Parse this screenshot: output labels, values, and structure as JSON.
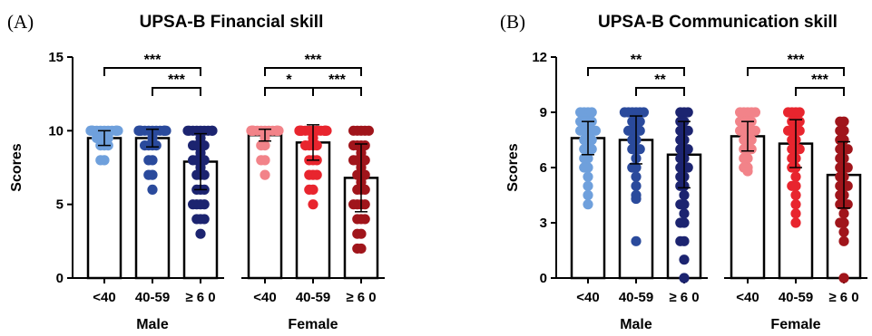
{
  "chart_data": [
    {
      "type": "bar",
      "panel_label": "(A)",
      "title": "UPSA-B Financial skill",
      "ylabel": "Scores",
      "ylim": [
        0,
        15
      ],
      "yticks": [
        "0",
        "5",
        "10",
        "15"
      ],
      "ytick_values": [
        0,
        5,
        10,
        15
      ],
      "categories": [
        "<40",
        "40-59",
        "≥ 6 0",
        "<40",
        "40-59",
        "≥ 6 0"
      ],
      "groups": [
        {
          "name": "Male",
          "categories": [
            0,
            1,
            2
          ]
        },
        {
          "name": "Female",
          "categories": [
            3,
            4,
            5
          ]
        }
      ],
      "values": [
        9.5,
        9.5,
        7.9,
        9.7,
        9.2,
        6.8
      ],
      "error": [
        0.5,
        0.6,
        1.9,
        0.4,
        1.2,
        2.3
      ],
      "colors": [
        "#6fa0dc",
        "#2a4a9c",
        "#1c2470",
        "#f28389",
        "#e8252e",
        "#a0151b"
      ],
      "points": [
        [
          10,
          10,
          10,
          10,
          10,
          10,
          10,
          10,
          10,
          10,
          10,
          10,
          10,
          10,
          10,
          10,
          10,
          10,
          9.5,
          9.5,
          9.5,
          9.5,
          9,
          9,
          9,
          8,
          8
        ],
        [
          10,
          10,
          10,
          10,
          10,
          10,
          10,
          10,
          10,
          10,
          10,
          10,
          10,
          10,
          10,
          10,
          9.5,
          9,
          9,
          9,
          9,
          8,
          8,
          7,
          7,
          6
        ],
        [
          10,
          10,
          10,
          10,
          10,
          10,
          10,
          10,
          10,
          9.5,
          9,
          9,
          9,
          9,
          8.5,
          8,
          8,
          8,
          8,
          7.5,
          7,
          7,
          7,
          6,
          6,
          6,
          5,
          5,
          5,
          5,
          4,
          4,
          4,
          3
        ],
        [
          10,
          10,
          10,
          10,
          10,
          10,
          10,
          10,
          10,
          10,
          10,
          10,
          10,
          10,
          10,
          10,
          10,
          10,
          9.5,
          9,
          9,
          8,
          8,
          7
        ],
        [
          10,
          10,
          10,
          10,
          10,
          10,
          10,
          10,
          10,
          10,
          10,
          10,
          10,
          10,
          10,
          10,
          10,
          9.5,
          9,
          9,
          9,
          9,
          8,
          8,
          8,
          7,
          7,
          7,
          6,
          6,
          5
        ],
        [
          10,
          10,
          10,
          10,
          10,
          9,
          9,
          9,
          9,
          8.5,
          8,
          8,
          8,
          8,
          7.5,
          7,
          7,
          7,
          6.5,
          6,
          6,
          6,
          5,
          5,
          5,
          5,
          4,
          4,
          4,
          3,
          3,
          2,
          2
        ]
      ],
      "comparisons": [
        {
          "from": 0,
          "to": 2,
          "label": "***"
        },
        {
          "from": 1,
          "to": 2,
          "label": "***"
        },
        {
          "from": 3,
          "to": 5,
          "label": "***"
        },
        {
          "from": 3,
          "to": 4,
          "label": "*"
        },
        {
          "from": 4,
          "to": 5,
          "label": "***"
        }
      ]
    },
    {
      "type": "bar",
      "panel_label": "(B)",
      "title": "UPSA-B Communication skill",
      "ylabel": "Scores",
      "ylim": [
        0,
        12
      ],
      "yticks": [
        "0",
        "3",
        "6",
        "9",
        "12"
      ],
      "ytick_values": [
        0,
        3,
        6,
        9,
        12
      ],
      "categories": [
        "<40",
        "40-59",
        "≥ 6 0",
        "<40",
        "40-59",
        "≥ 6 0"
      ],
      "groups": [
        {
          "name": "Male",
          "categories": [
            0,
            1,
            2
          ]
        },
        {
          "name": "Female",
          "categories": [
            3,
            4,
            5
          ]
        }
      ],
      "values": [
        7.6,
        7.5,
        6.7,
        7.7,
        7.3,
        5.6
      ],
      "error": [
        0.9,
        1.3,
        1.8,
        0.8,
        1.3,
        1.8
      ],
      "colors": [
        "#6fa0dc",
        "#2a4a9c",
        "#1c2470",
        "#f28389",
        "#e8252e",
        "#a0151b"
      ],
      "points": [
        [
          9,
          9,
          9,
          9,
          8.5,
          8.5,
          8.5,
          8.5,
          8,
          8,
          8,
          8,
          8,
          7.5,
          7.5,
          7.5,
          7,
          7,
          7,
          6.5,
          6.5,
          6,
          6,
          5.5,
          5,
          4.5,
          4
        ],
        [
          9,
          9,
          9,
          9,
          9,
          9,
          8.5,
          8.5,
          8.5,
          8,
          8,
          8,
          8,
          7.5,
          7.5,
          7,
          7,
          7,
          6.5,
          6,
          6,
          5.5,
          5,
          4.5,
          4.3,
          2
        ],
        [
          9,
          9,
          9,
          8.5,
          8.5,
          8,
          8,
          8,
          7.5,
          7.5,
          7,
          7,
          7,
          6.5,
          6.5,
          6,
          6,
          6,
          5.5,
          5.5,
          5,
          5,
          4.5,
          4,
          4,
          3.5,
          3,
          3,
          2,
          2,
          1,
          0
        ],
        [
          9,
          9,
          9,
          9,
          9,
          8.5,
          8.5,
          8.5,
          8.5,
          8,
          8,
          8,
          8,
          8,
          7.5,
          7.5,
          7.5,
          7,
          7,
          7,
          6.5,
          6.5,
          6,
          6,
          5.8
        ],
        [
          9,
          9,
          9,
          9,
          8.5,
          8.5,
          8.5,
          8,
          8,
          8,
          8,
          7.5,
          7.5,
          7,
          7,
          7,
          6.5,
          6.5,
          6,
          6,
          5.5,
          5,
          5,
          4.5,
          4,
          3.5,
          3
        ],
        [
          8.5,
          8.5,
          8,
          8,
          7.5,
          7.5,
          7,
          7,
          7,
          6.5,
          6.5,
          6,
          6,
          6,
          5.5,
          5.5,
          5,
          5,
          5,
          4.5,
          4.5,
          4,
          4,
          4,
          3.5,
          3,
          3,
          2.5,
          2,
          0
        ]
      ],
      "comparisons": [
        {
          "from": 0,
          "to": 2,
          "label": "**"
        },
        {
          "from": 1,
          "to": 2,
          "label": "**"
        },
        {
          "from": 3,
          "to": 5,
          "label": "***"
        },
        {
          "from": 4,
          "to": 5,
          "label": "***"
        }
      ]
    }
  ]
}
